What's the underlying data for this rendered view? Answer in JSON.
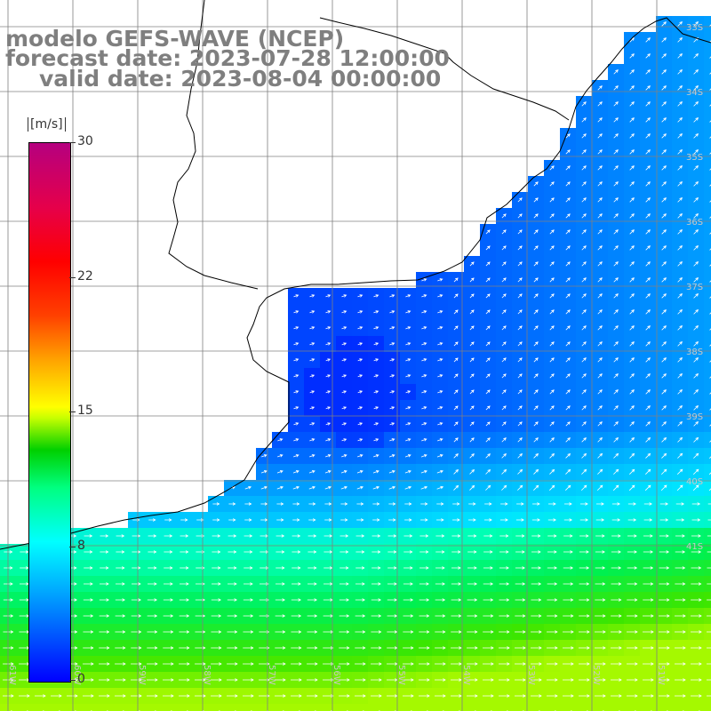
{
  "title": {
    "line1": "modelo GEFS-WAVE (NCEP)",
    "line2": "forecast date: 2023-07-28 12:00:00",
    "line3": "valid date: 2023-08-04 00:00:00"
  },
  "colorbar": {
    "unit": "[m/s]",
    "ticks": [
      "30",
      "22",
      "15",
      "8",
      "0"
    ],
    "colors": [
      "#0000ff",
      "#00aaff",
      "#00ffff",
      "#00ff80",
      "#00d000",
      "#ffff00",
      "#ff0000",
      "#b5007f"
    ]
  },
  "map_labels": {
    "lat": [
      "33S",
      "34S",
      "35S",
      "36S",
      "37S",
      "38S",
      "39S",
      "40S",
      "41S"
    ],
    "lon": [
      "61W",
      "60W",
      "59W",
      "58W",
      "57W",
      "56W",
      "55W",
      "54W",
      "53W",
      "52W",
      "51W"
    ]
  },
  "colors": {
    "land": "#ffffff",
    "grid": "#808080",
    "coast": "#000000",
    "title": "#7f7f7f"
  }
}
